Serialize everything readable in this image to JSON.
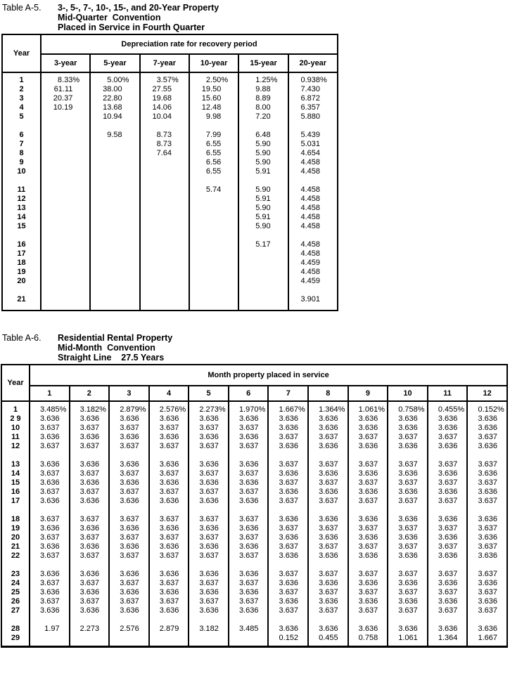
{
  "page": {
    "background": "#ffffff",
    "text_color": "#000000"
  },
  "tables": {
    "a5": {
      "label": "Table A-5.",
      "title_lines": [
        "3-, 5-, 7-, 10-, 15-, and 20-Year Property",
        "Mid-Quarter  Convention",
        "Placed in Service in Fourth Quarter"
      ],
      "corner_header": "Year",
      "group_header": "Depreciation rate for recovery period",
      "columns": [
        "3-year",
        "5-year",
        "7-year",
        "10-year",
        "15-year",
        "20-year"
      ],
      "rows": [
        [
          "1",
          "8.33%",
          "5.00%",
          "3.57%",
          "2.50%",
          "1.25%",
          "0.938%"
        ],
        [
          "2",
          "61.11",
          "38.00",
          "27.55",
          "19.50",
          "9.88",
          "7.430"
        ],
        [
          "3",
          "20.37",
          "22.80",
          "19.68",
          "15.60",
          "8.89",
          "6.872"
        ],
        [
          "4",
          "10.19",
          "13.68",
          "14.06",
          "12.48",
          "8.00",
          "6.357"
        ],
        [
          "5",
          "",
          "10.94",
          "10.04",
          "9.98",
          "7.20",
          "5.880"
        ],
        [],
        [
          "6",
          "",
          "9.58",
          "8.73",
          "7.99",
          "6.48",
          "5.439"
        ],
        [
          "7",
          "",
          "",
          "8.73",
          "6.55",
          "5.90",
          "5.031"
        ],
        [
          "8",
          "",
          "",
          "7.64",
          "6.55",
          "5.90",
          "4.654"
        ],
        [
          "9",
          "",
          "",
          "",
          "6.56",
          "5.90",
          "4.458"
        ],
        [
          "10",
          "",
          "",
          "",
          "6.55",
          "5.91",
          "4.458"
        ],
        [],
        [
          "11",
          "",
          "",
          "",
          "5.74",
          "5.90",
          "4.458"
        ],
        [
          "12",
          "",
          "",
          "",
          "",
          "5.91",
          "4.458"
        ],
        [
          "13",
          "",
          "",
          "",
          "",
          "5.90",
          "4.458"
        ],
        [
          "14",
          "",
          "",
          "",
          "",
          "5.91",
          "4.458"
        ],
        [
          "15",
          "",
          "",
          "",
          "",
          "5.90",
          "4.458"
        ],
        [],
        [
          "16",
          "",
          "",
          "",
          "",
          "5.17",
          "4.458"
        ],
        [
          "17",
          "",
          "",
          "",
          "",
          "",
          "4.458"
        ],
        [
          "18",
          "",
          "",
          "",
          "",
          "",
          "4.459"
        ],
        [
          "19",
          "",
          "",
          "",
          "",
          "",
          "4.458"
        ],
        [
          "20",
          "",
          "",
          "",
          "",
          "",
          "4.459"
        ],
        [],
        [
          "21",
          "",
          "",
          "",
          "",
          "",
          "3.901"
        ]
      ]
    },
    "a6": {
      "label": "Table A-6.",
      "title_lines": [
        "Residential Rental Property",
        "Mid-Month  Convention",
        "Straight Line    27.5 Years"
      ],
      "corner_header": "Year",
      "group_header": "Month property placed in service",
      "columns": [
        "1",
        "2",
        "3",
        "4",
        "5",
        "6",
        "7",
        "8",
        "9",
        "10",
        "11",
        "12"
      ],
      "rows": [
        [
          "1",
          "3.485%",
          "3.182%",
          "2.879%",
          "2.576%",
          "2.273%",
          "1.970%",
          "1.667%",
          "1.364%",
          "1.061%",
          "0.758%",
          "0.455%",
          "0.152%"
        ],
        [
          "2 9",
          "3.636",
          "3.636",
          "3.636",
          "3.636",
          "3.636",
          "3.636",
          "3.636",
          "3.636",
          "3.636",
          "3.636",
          "3.636",
          "3.636"
        ],
        [
          "10",
          "3.637",
          "3.637",
          "3.637",
          "3.637",
          "3.637",
          "3.637",
          "3.636",
          "3.636",
          "3.636",
          "3.636",
          "3.636",
          "3.636"
        ],
        [
          "11",
          "3.636",
          "3.636",
          "3.636",
          "3.636",
          "3.636",
          "3.636",
          "3.637",
          "3.637",
          "3.637",
          "3.637",
          "3.637",
          "3.637"
        ],
        [
          "12",
          "3.637",
          "3.637",
          "3.637",
          "3.637",
          "3.637",
          "3.637",
          "3.636",
          "3.636",
          "3.636",
          "3.636",
          "3.636",
          "3.636"
        ],
        [],
        [
          "13",
          "3.636",
          "3.636",
          "3.636",
          "3.636",
          "3.636",
          "3.636",
          "3.637",
          "3.637",
          "3.637",
          "3.637",
          "3.637",
          "3.637"
        ],
        [
          "14",
          "3.637",
          "3.637",
          "3.637",
          "3.637",
          "3.637",
          "3.637",
          "3.636",
          "3.636",
          "3.636",
          "3.636",
          "3.636",
          "3.636"
        ],
        [
          "15",
          "3.636",
          "3.636",
          "3.636",
          "3.636",
          "3.636",
          "3.636",
          "3.637",
          "3.637",
          "3.637",
          "3.637",
          "3.637",
          "3.637"
        ],
        [
          "16",
          "3.637",
          "3.637",
          "3.637",
          "3.637",
          "3.637",
          "3.637",
          "3.636",
          "3.636",
          "3.636",
          "3.636",
          "3.636",
          "3.636"
        ],
        [
          "17",
          "3.636",
          "3.636",
          "3.636",
          "3.636",
          "3.636",
          "3.636",
          "3.637",
          "3.637",
          "3.637",
          "3.637",
          "3.637",
          "3.637"
        ],
        [],
        [
          "18",
          "3.637",
          "3.637",
          "3.637",
          "3.637",
          "3.637",
          "3.637",
          "3.636",
          "3.636",
          "3.636",
          "3.636",
          "3.636",
          "3.636"
        ],
        [
          "19",
          "3.636",
          "3.636",
          "3.636",
          "3.636",
          "3.636",
          "3.636",
          "3.637",
          "3.637",
          "3.637",
          "3.637",
          "3.637",
          "3.637"
        ],
        [
          "20",
          "3.637",
          "3.637",
          "3.637",
          "3.637",
          "3.637",
          "3.637",
          "3.636",
          "3.636",
          "3.636",
          "3.636",
          "3.636",
          "3.636"
        ],
        [
          "21",
          "3.636",
          "3.636",
          "3.636",
          "3.636",
          "3.636",
          "3.636",
          "3.637",
          "3.637",
          "3.637",
          "3.637",
          "3.637",
          "3.637"
        ],
        [
          "22",
          "3.637",
          "3.637",
          "3.637",
          "3.637",
          "3.637",
          "3.637",
          "3.636",
          "3.636",
          "3.636",
          "3.636",
          "3.636",
          "3.636"
        ],
        [],
        [
          "23",
          "3.636",
          "3.636",
          "3.636",
          "3.636",
          "3.636",
          "3.636",
          "3.637",
          "3.637",
          "3.637",
          "3.637",
          "3.637",
          "3.637"
        ],
        [
          "24",
          "3.637",
          "3.637",
          "3.637",
          "3.637",
          "3.637",
          "3.637",
          "3.636",
          "3.636",
          "3.636",
          "3.636",
          "3.636",
          "3.636"
        ],
        [
          "25",
          "3.636",
          "3.636",
          "3.636",
          "3.636",
          "3.636",
          "3.636",
          "3.637",
          "3.637",
          "3.637",
          "3.637",
          "3.637",
          "3.637"
        ],
        [
          "26",
          "3.637",
          "3.637",
          "3.637",
          "3.637",
          "3.637",
          "3.637",
          "3.636",
          "3.636",
          "3.636",
          "3.636",
          "3.636",
          "3.636"
        ],
        [
          "27",
          "3.636",
          "3.636",
          "3.636",
          "3.636",
          "3.636",
          "3.636",
          "3.637",
          "3.637",
          "3.637",
          "3.637",
          "3.637",
          "3.637"
        ],
        [],
        [
          "28",
          "1.97",
          "2.273",
          "2.576",
          "2.879",
          "3.182",
          "3.485",
          "3.636",
          "3.636",
          "3.636",
          "3.636",
          "3.636",
          "3.636"
        ],
        [
          "29",
          "",
          "",
          "",
          "",
          "",
          "",
          "0.152",
          "0.455",
          "0.758",
          "1.061",
          "1.364",
          "1.667"
        ]
      ]
    }
  }
}
